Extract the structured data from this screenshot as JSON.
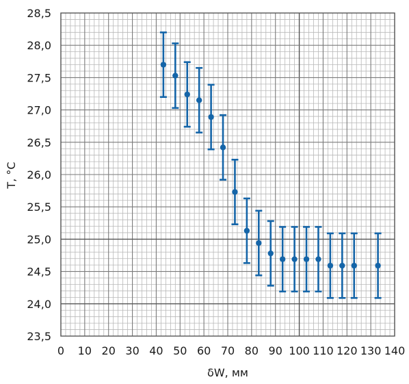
{
  "chart_data": {
    "type": "scatter",
    "title": "",
    "xlabel": "δW, мм",
    "ylabel": "T, °C",
    "xlim": [
      0,
      140
    ],
    "ylim": [
      23.5,
      28.5
    ],
    "x_ticks": [
      0,
      10,
      20,
      30,
      40,
      50,
      60,
      70,
      80,
      90,
      100,
      110,
      120,
      130,
      140
    ],
    "x_tick_labels": [
      "0",
      "10",
      "20",
      "30",
      "40",
      "50",
      "60",
      "70",
      "80",
      "90",
      "100",
      "110",
      "120",
      "130",
      "140"
    ],
    "y_ticks": [
      23.5,
      24.0,
      24.5,
      25.0,
      25.5,
      26.0,
      26.5,
      27.0,
      27.5,
      28.0,
      28.5
    ],
    "y_tick_labels": [
      "23,5",
      "24,0",
      "24,5",
      "25,0",
      "25,5",
      "26,0",
      "26,5",
      "27,0",
      "27,5",
      "28,0",
      "28,5"
    ],
    "grid": true,
    "grid_minor_x": 2,
    "grid_minor_y": 0.1,
    "error_bar": 0.5,
    "colors": {
      "marker": "#1565a8",
      "grid_minor": "#b8b8b8",
      "grid_major": "#7a7a7a"
    },
    "series": [
      {
        "x": [
          43,
          48,
          53,
          58,
          63,
          68,
          73,
          78,
          83,
          88,
          93,
          98,
          103,
          108,
          113,
          118,
          123,
          133
        ],
        "y": [
          27.7,
          27.53,
          27.24,
          27.15,
          26.89,
          26.42,
          25.73,
          25.13,
          24.94,
          24.78,
          24.69,
          24.69,
          24.69,
          24.69,
          24.59,
          24.59,
          24.59,
          24.59
        ]
      }
    ]
  }
}
